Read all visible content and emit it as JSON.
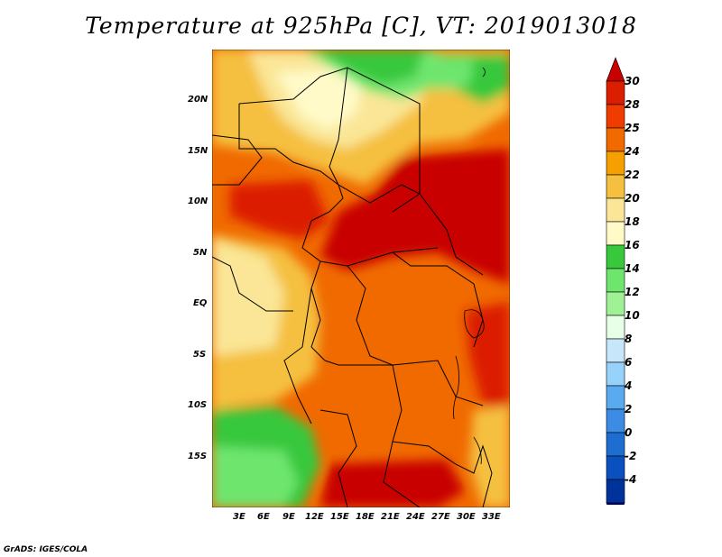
{
  "title": "Temperature at 925hPa [C], VT: 2019013018",
  "lat_labels": [
    "20N",
    "15N",
    "10N",
    "5N",
    "EQ",
    "5S",
    "10S",
    "15S"
  ],
  "lon_labels": [
    "3E",
    "6E",
    "9E",
    "12E",
    "15E",
    "18E",
    "21E",
    "24E",
    "27E",
    "30E",
    "33E"
  ],
  "colorbar": {
    "labels": [
      "30",
      "28",
      "25",
      "24",
      "22",
      "20",
      "18",
      "16",
      "14",
      "12",
      "10",
      "8",
      "6",
      "4",
      "2",
      "0",
      "-2",
      "-4"
    ],
    "colors": [
      "#c80000",
      "#dc1e00",
      "#f03c00",
      "#f06a00",
      "#f5a000",
      "#f5c040",
      "#fae696",
      "#fffac8",
      "#37c83c",
      "#6ee66e",
      "#a0f096",
      "#e6ffe6",
      "#c8e6fa",
      "#96d2fa",
      "#5aaaf0",
      "#3c8ce6",
      "#1e6ed2",
      "#0a50be",
      "#00329b",
      "#000064"
    ]
  },
  "footer": "GrADS: IGES/COLA"
}
